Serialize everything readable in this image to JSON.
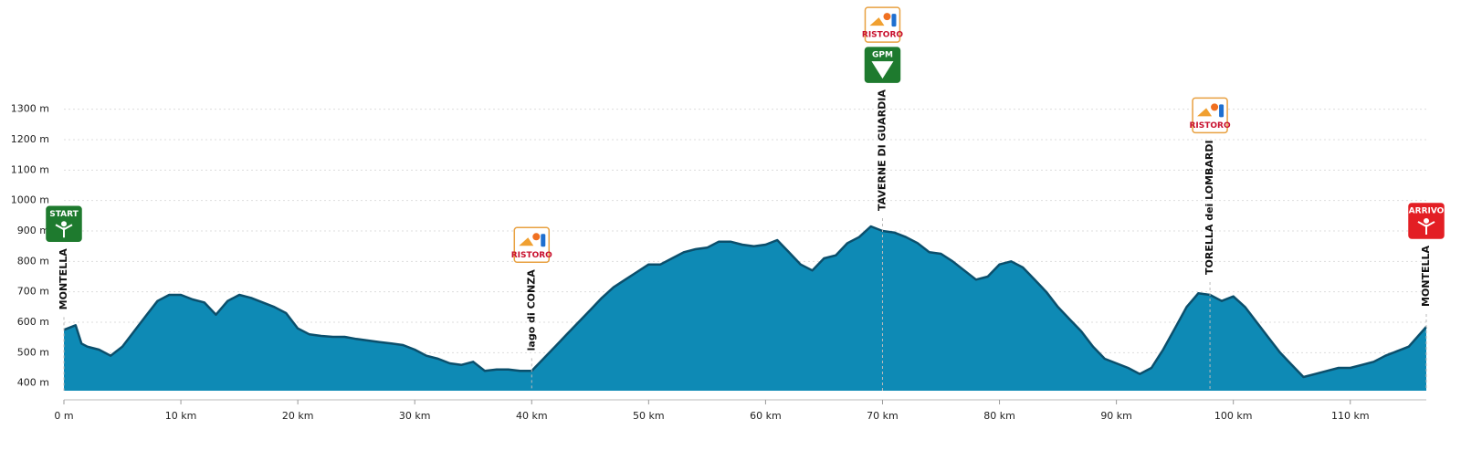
{
  "chart_data": {
    "type": "area",
    "x": [
      0,
      1,
      1.5,
      2,
      3,
      4,
      5,
      6,
      7,
      8,
      9,
      10,
      11,
      12,
      13,
      14,
      15,
      16,
      17,
      18,
      19,
      20,
      21,
      22,
      23,
      24,
      25,
      26,
      27,
      28,
      29,
      30,
      31,
      32,
      33,
      34,
      35,
      36,
      37,
      38,
      39,
      40,
      41,
      42,
      43,
      44,
      45,
      46,
      47,
      48,
      49,
      50,
      51,
      52,
      53,
      54,
      55,
      56,
      57,
      58,
      59,
      60,
      61,
      62,
      63,
      64,
      65,
      66,
      67,
      68,
      69,
      70,
      71,
      72,
      73,
      74,
      75,
      76,
      77,
      78,
      79,
      80,
      81,
      82,
      83,
      84,
      85,
      86,
      87,
      88,
      89,
      90,
      91,
      92,
      93,
      94,
      95,
      96,
      97,
      98,
      99,
      100,
      101,
      102,
      103,
      104,
      105,
      106,
      107,
      108,
      109,
      110,
      111,
      112,
      113,
      114,
      115,
      116.5
    ],
    "values": [
      575,
      590,
      530,
      520,
      510,
      490,
      520,
      570,
      620,
      670,
      690,
      690,
      675,
      665,
      625,
      670,
      690,
      680,
      665,
      650,
      630,
      580,
      560,
      555,
      552,
      552,
      545,
      540,
      535,
      530,
      525,
      510,
      490,
      480,
      465,
      460,
      470,
      440,
      445,
      445,
      440,
      440,
      480,
      520,
      560,
      600,
      640,
      680,
      715,
      740,
      765,
      790,
      790,
      810,
      830,
      840,
      845,
      865,
      865,
      855,
      850,
      855,
      870,
      830,
      790,
      770,
      810,
      820,
      860,
      880,
      915,
      900,
      895,
      880,
      860,
      830,
      825,
      800,
      770,
      740,
      750,
      790,
      800,
      780,
      740,
      700,
      650,
      610,
      570,
      520,
      480,
      465,
      450,
      430,
      450,
      510,
      580,
      650,
      695,
      690,
      670,
      685,
      650,
      600,
      550,
      500,
      460,
      420,
      430,
      440,
      450,
      450,
      460,
      470,
      490,
      505,
      520,
      585
    ],
    "color": "#0e8ab5",
    "line_color": "#0b4f6c",
    "xlim": [
      0,
      116.5
    ],
    "ylim": [
      375,
      1500
    ],
    "xticks": [
      {
        "value": 0,
        "label": "0 m"
      },
      {
        "value": 10,
        "label": "10 km"
      },
      {
        "value": 20,
        "label": "20 km"
      },
      {
        "value": 30,
        "label": "30 km"
      },
      {
        "value": 40,
        "label": "40 km"
      },
      {
        "value": 50,
        "label": "50 km"
      },
      {
        "value": 60,
        "label": "60 km"
      },
      {
        "value": 70,
        "label": "70 km"
      },
      {
        "value": 80,
        "label": "80 km"
      },
      {
        "value": 90,
        "label": "90 km"
      },
      {
        "value": 100,
        "label": "100 km"
      },
      {
        "value": 110,
        "label": "110 km"
      }
    ],
    "yticks": [
      {
        "value": 400,
        "label": "400 m"
      },
      {
        "value": 500,
        "label": "500 m"
      },
      {
        "value": 600,
        "label": "600 m"
      },
      {
        "value": 700,
        "label": "700 m"
      },
      {
        "value": 800,
        "label": "800 m"
      },
      {
        "value": 900,
        "label": "900 m"
      },
      {
        "value": 1000,
        "label": "1000 m"
      },
      {
        "value": 1100,
        "label": "1100 m"
      },
      {
        "value": 1200,
        "label": "1200 m"
      },
      {
        "value": 1300,
        "label": "1300 m"
      }
    ],
    "grid": true,
    "annotations": [
      {
        "x": 0,
        "label": "MONTELLA",
        "icons": [
          "START"
        ]
      },
      {
        "x": 40,
        "label": "lago di CONZA",
        "icons": [
          "RISTORO"
        ]
      },
      {
        "x": 70,
        "label": "TAVERNE DI GUARDIA",
        "icons": [
          "RISTORO",
          "GPM"
        ]
      },
      {
        "x": 98,
        "label": "TORELLA dei LOMBARDI",
        "icons": [
          "RISTORO"
        ]
      },
      {
        "x": 116.5,
        "label": "MONTELLA",
        "icons": [
          "ARRIVO"
        ]
      }
    ]
  }
}
